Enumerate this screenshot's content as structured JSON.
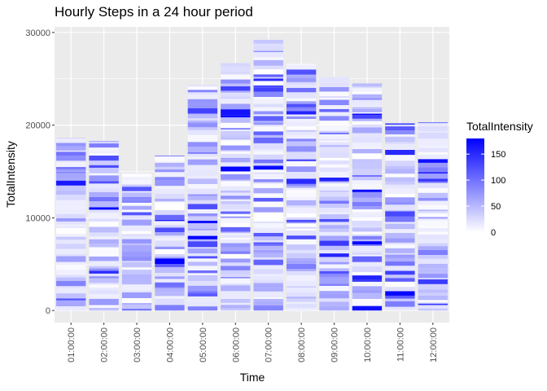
{
  "chart_data": {
    "type": "bar",
    "title": "Hourly Steps in a 24 hour period",
    "xlabel": "Time",
    "ylabel": "TotalIntensity",
    "categories": [
      "01:00:00",
      "02:00:00",
      "03:00:00",
      "04:00:00",
      "05:00:00",
      "06:00:00",
      "07:00:00",
      "08:00:00",
      "09:00:00",
      "10:00:00",
      "11:00:00",
      "12:00:00"
    ],
    "values": [
      18600,
      18300,
      14800,
      16700,
      24300,
      26700,
      29200,
      26600,
      25200,
      24500,
      20200,
      20300
    ],
    "ylim": [
      -1300,
      30600
    ],
    "yticks": [
      0,
      10000,
      20000,
      30000
    ],
    "ytick_labels": [
      "0",
      "10000",
      "20000",
      "30000"
    ],
    "stack_fill": "TotalIntensity (0–180) per stacked segment",
    "legend": {
      "title": "TotalIntensity",
      "placement": "right",
      "ticks": [
        0,
        50,
        100,
        150
      ],
      "tick_labels": [
        "0",
        "50",
        "100",
        "150"
      ],
      "min": 0,
      "max": 180,
      "low_color": "#ffffff",
      "high_color": "#0000ff"
    },
    "panel_background": "#ebebeb",
    "grid_color": "#ffffff",
    "grid": true
  }
}
